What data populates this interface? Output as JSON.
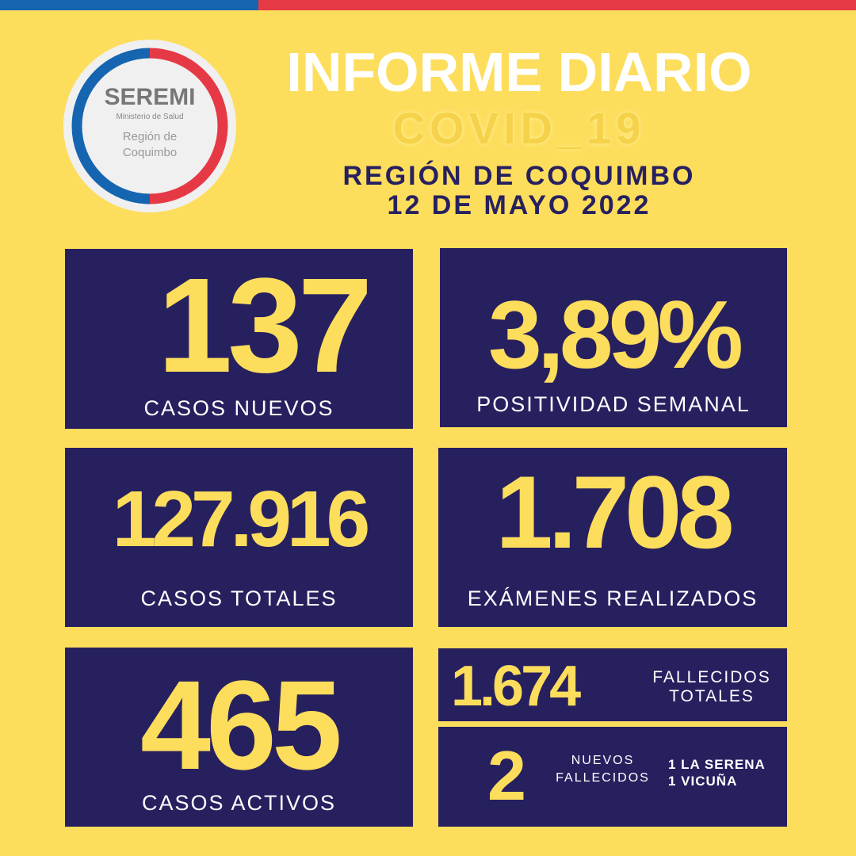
{
  "colors": {
    "background": "#FDDD5C",
    "panel": "#27205F",
    "number": "#FDDD5C",
    "blue": "#1565B0",
    "red": "#E63946"
  },
  "logo": {
    "title": "SEREMI",
    "subtitle": "Ministerio de Salud",
    "region_line1": "Región de",
    "region_line2": "Coquimbo"
  },
  "header": {
    "title": "INFORME DIARIO",
    "subtitle": "COVID_19",
    "region": "REGIÓN DE COQUIMBO",
    "date": "12 DE MAYO 2022"
  },
  "stats": {
    "new_cases": {
      "value": "137",
      "label": "CASOS NUEVOS"
    },
    "positivity": {
      "value": "3,89%",
      "label": "POSITIVIDAD SEMANAL"
    },
    "total_cases": {
      "value": "127.916",
      "label": "CASOS TOTALES"
    },
    "exams": {
      "value": "1.708",
      "label": "EXÁMENES REALIZADOS"
    },
    "active_cases": {
      "value": "465",
      "label": "CASOS ACTIVOS"
    },
    "total_deaths": {
      "value": "1.674",
      "label_line1": "FALLECIDOS",
      "label_line2": "TOTALES"
    },
    "new_deaths": {
      "value": "2",
      "label_line1": "NUEVOS",
      "label_line2": "FALLECIDOS",
      "detail_line1": "1 LA SERENA",
      "detail_line2": "1 VICUÑA"
    }
  }
}
